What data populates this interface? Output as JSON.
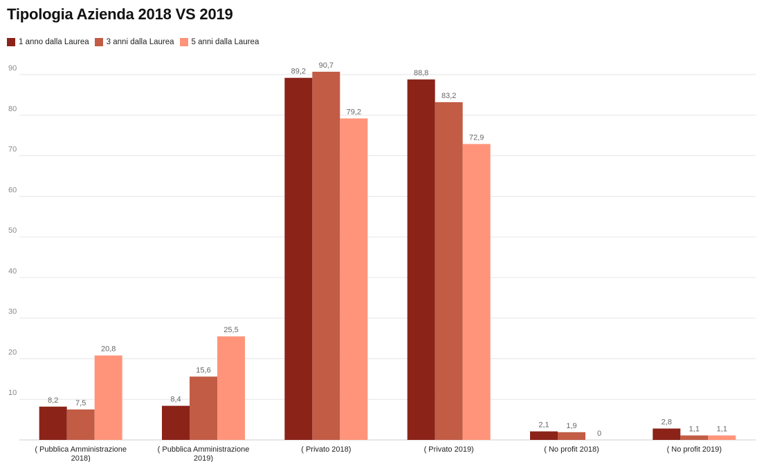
{
  "chart_data": {
    "type": "bar",
    "title": "Tipologia Azienda 2018 VS 2019",
    "categories": [
      [
        "( Pubblica Amministrazione",
        "2018)"
      ],
      [
        "( Pubblica Amministrazione",
        "2019)"
      ],
      [
        "( Privato 2018)"
      ],
      [
        "( Privato 2019)"
      ],
      [
        "( No profit 2018)"
      ],
      [
        "( No profit 2019)"
      ]
    ],
    "series": [
      {
        "name": "1 anno dalla Laurea",
        "color": "#8B2318",
        "values": [
          8.2,
          8.4,
          89.2,
          88.8,
          2.1,
          2.8
        ],
        "labels": [
          "8,2",
          "8,4",
          "89,2",
          "88,8",
          "2,1",
          "2,8"
        ]
      },
      {
        "name": "3 anni dalla Laurea",
        "color": "#C25C45",
        "values": [
          7.5,
          15.6,
          90.7,
          83.2,
          1.9,
          1.1
        ],
        "labels": [
          "7,5",
          "15,6",
          "90,7",
          "83,2",
          "1,9",
          "1,1"
        ]
      },
      {
        "name": "5 anni dalla Laurea",
        "color": "#FF947A",
        "values": [
          20.8,
          25.5,
          79.2,
          72.9,
          0,
          1.1
        ],
        "labels": [
          "20,8",
          "25,5",
          "79,2",
          "72,9",
          "0",
          "1,1"
        ]
      }
    ],
    "yticks": [
      10,
      20,
      30,
      40,
      50,
      60,
      70,
      80,
      90
    ],
    "ylim": [
      0,
      90
    ],
    "xlabel": "",
    "ylabel": "",
    "grid": true,
    "legend_position": "top-left"
  }
}
